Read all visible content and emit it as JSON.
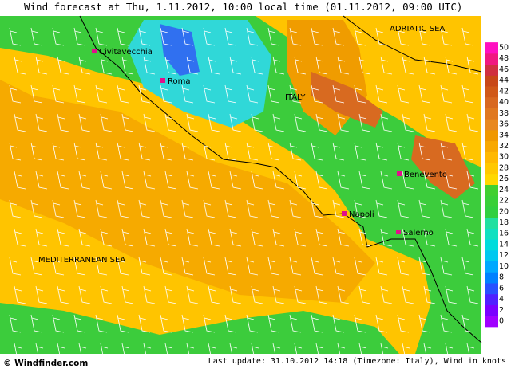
{
  "header": {
    "title": "Wind forecast at Thu, 1.11.2012, 10:00 local time (01.11.2012, 09:00 UTC)"
  },
  "map": {
    "regions": [
      "ITALY",
      "ADRIATIC SEA",
      "MEDITERRANEAN SEA"
    ],
    "cities": [
      "Civitavecchia",
      "Roma",
      "Benevento",
      "Napoli",
      "Salerno"
    ]
  },
  "legend": {
    "ticks": [
      0,
      2,
      4,
      6,
      8,
      10,
      12,
      14,
      16,
      18,
      20,
      22,
      24,
      26,
      28,
      30,
      32,
      34,
      36,
      38,
      40,
      42,
      44,
      46,
      48,
      50
    ],
    "colors": [
      "#a000ff",
      "#7a00ff",
      "#5020ff",
      "#2850ff",
      "#0080ff",
      "#00a8ff",
      "#00c8f0",
      "#00dcdc",
      "#10e0c0",
      "#20e0a0",
      "#30d040",
      "#38d038",
      "#40d030",
      "#ffd800",
      "#ffc800",
      "#ffb800",
      "#f8a800",
      "#f09800",
      "#e88820",
      "#e07820",
      "#d86820",
      "#d05818",
      "#c84818",
      "#d03040",
      "#f01880",
      "#ff10c0"
    ]
  },
  "footer": {
    "logo": "© Windfinder.com",
    "update": "Last update: 31.10.2012 14:18 (Timezone: Italy), Wind in knots"
  }
}
